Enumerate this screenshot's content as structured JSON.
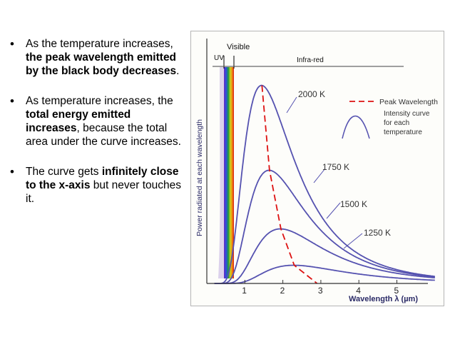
{
  "bullets": [
    {
      "parts": [
        {
          "text": "As the temperature increases, ",
          "bold": false
        },
        {
          "text": "the peak wavelength emitted by the black body decreases",
          "bold": true
        },
        {
          "text": ".",
          "bold": false
        }
      ]
    },
    {
      "parts": [
        {
          "text": "As temperature increases, the ",
          "bold": false
        },
        {
          "text": "total energy emitted increases",
          "bold": true
        },
        {
          "text": ", because the total area under the curve increases.",
          "bold": false
        }
      ]
    },
    {
      "parts": [
        {
          "text": "The curve gets ",
          "bold": false
        },
        {
          "text": "infinitely close to the x-axis",
          "bold": true
        },
        {
          "text": " but never touches it.",
          "bold": false
        }
      ]
    }
  ],
  "figure": {
    "region_visible": "Visible",
    "region_uv": "UV",
    "region_infrared": "Infra-red",
    "ylabel": "Power radiated at each wavelength",
    "xlabel": "Wavelength λ (µm)",
    "x_ticks": [
      "1",
      "2",
      "3",
      "4",
      "5"
    ],
    "curve_labels": [
      "2000 K",
      "1750 K",
      "1500 K",
      "1250 K"
    ],
    "legend_peak": "Peak Wavelength",
    "legend_curve_lines": [
      "Intensity curve",
      "for each",
      "temperature"
    ]
  },
  "chart_data": {
    "type": "line",
    "title": "",
    "xlabel": "Wavelength λ (µm)",
    "ylabel": "Power radiated at each wavelength",
    "xlim": [
      0,
      6
    ],
    "ylim": [
      0,
      100
    ],
    "series": [
      {
        "name": "2000 K",
        "peak_x": 1.45,
        "peak_y": 98,
        "color": "#5552b0"
      },
      {
        "name": "1750 K",
        "peak_x": 1.65,
        "peak_y": 56,
        "color": "#5552b0"
      },
      {
        "name": "1500 K",
        "peak_x": 1.95,
        "peak_y": 27,
        "color": "#5552b0"
      },
      {
        "name": "1250 K",
        "peak_x": 2.3,
        "peak_y": 9,
        "color": "#5552b0"
      }
    ],
    "peak_wavelength": {
      "name": "Peak Wavelength",
      "x": [
        1.45,
        1.65,
        1.95,
        2.3,
        2.9
      ],
      "y": [
        98,
        56,
        27,
        9,
        0
      ],
      "color": "#dd1111"
    }
  }
}
